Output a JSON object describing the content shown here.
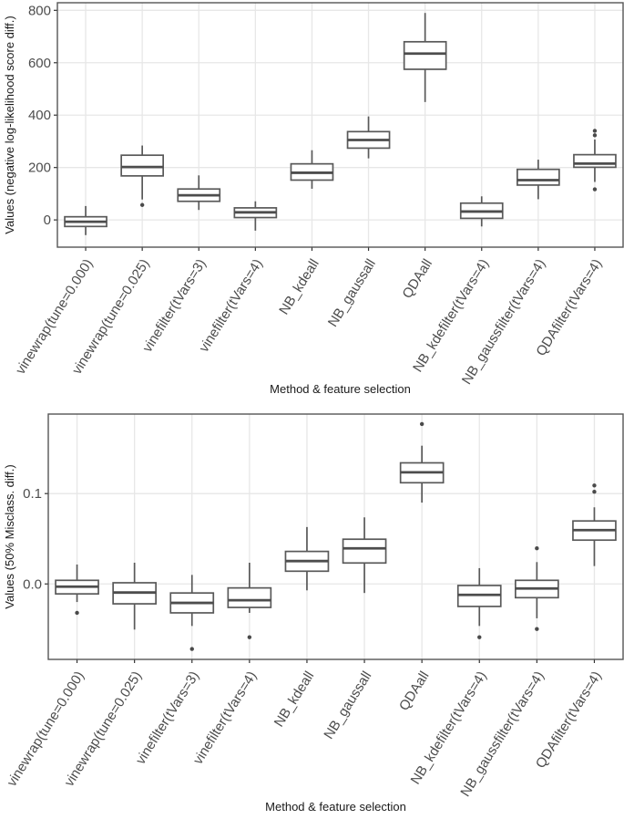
{
  "colors": {
    "box_stroke": "#595959",
    "median_stroke": "#4d4d4d",
    "box_fill": "#ffffff",
    "outlier_fill": "#4a4a4a",
    "grid": "#e7e7e7",
    "panel_border": "#555555",
    "tick_mark": "#333333",
    "tick_label": "#4d4d4d",
    "axis_title": "#1a1a1a",
    "background": "#ffffff"
  },
  "chart_data": [
    {
      "type": "boxplot",
      "xlabel": "Method & feature selection",
      "ylabel": "Values (negative log-likelihood score diff.)",
      "grid": true,
      "legend": "none",
      "ylim": [
        -104,
        829
      ],
      "ytick_values": [
        0,
        200,
        400,
        600,
        800
      ],
      "ytick_labels": [
        "0",
        "200",
        "400",
        "600",
        "800"
      ],
      "categories": [
        "vinewrap(tune=0.000)",
        "vinewrap(tune=0.025)",
        "vinefilter(tVars=3)",
        "vinefilter(tVars=4)",
        "NB_kdeall",
        "NB_gaussall",
        "QDAall",
        "NB_kdefilter(tVars=4)",
        "NB_gaussfilter(tVars=4)",
        "QDAfilter(tVars=4)"
      ],
      "boxes": [
        {
          "low": -58,
          "q1": -25,
          "median": -7,
          "q3": 12,
          "high": 53,
          "outliers": []
        },
        {
          "low": 78,
          "q1": 168,
          "median": 202,
          "q3": 247,
          "high": 284,
          "outliers": [
            57
          ]
        },
        {
          "low": 38,
          "q1": 71,
          "median": 94,
          "q3": 118,
          "high": 170,
          "outliers": []
        },
        {
          "low": -41,
          "q1": 9,
          "median": 29,
          "q3": 46,
          "high": 71,
          "outliers": []
        },
        {
          "low": 119,
          "q1": 152,
          "median": 180,
          "q3": 214,
          "high": 266,
          "outliers": []
        },
        {
          "low": 235,
          "q1": 274,
          "median": 305,
          "q3": 337,
          "high": 395,
          "outliers": []
        },
        {
          "low": 450,
          "q1": 575,
          "median": 635,
          "q3": 680,
          "high": 790,
          "outliers": []
        },
        {
          "low": -25,
          "q1": 6,
          "median": 32,
          "q3": 64,
          "high": 90,
          "outliers": []
        },
        {
          "low": 79,
          "q1": 133,
          "median": 152,
          "q3": 193,
          "high": 230,
          "outliers": []
        },
        {
          "low": 145,
          "q1": 201,
          "median": 215,
          "q3": 249,
          "high": 307,
          "outliers": [
            340,
            323,
            117
          ]
        }
      ]
    },
    {
      "type": "boxplot",
      "xlabel": "Method & feature selection",
      "ylabel": "Values (50% Misclass. diff.)",
      "grid": true,
      "legend": "none",
      "ylim": [
        -0.0835,
        0.188
      ],
      "ytick_values": [
        0,
        0.1
      ],
      "ytick_labels": [
        "0.0",
        "0.1"
      ],
      "categories": [
        "vinewrap(tune=0.000)",
        "vinewrap(tune=0.025)",
        "vinefilter(tVars=3)",
        "vinefilter(tVars=4)",
        "NB_kdeall",
        "NB_gaussall",
        "QDAall",
        "NB_kdefilter(tVars=4)",
        "NB_gaussfilter(tVars=4)",
        "QDAfilter(tVars=4)"
      ],
      "boxes": [
        {
          "low": -0.02,
          "q1": -0.011,
          "median": -0.003,
          "q3": 0.004,
          "high": 0.0215,
          "outliers": [
            -0.032
          ]
        },
        {
          "low": -0.0505,
          "q1": -0.022,
          "median": -0.0095,
          "q3": 0.0013,
          "high": 0.0235,
          "outliers": []
        },
        {
          "low": -0.0465,
          "q1": -0.032,
          "median": -0.021,
          "q3": -0.01,
          "high": 0.01,
          "outliers": [
            -0.072
          ]
        },
        {
          "low": -0.032,
          "q1": -0.026,
          "median": -0.018,
          "q3": -0.0044,
          "high": 0.0235,
          "outliers": [
            -0.059
          ]
        },
        {
          "low": -0.0071,
          "q1": 0.0141,
          "median": 0.0253,
          "q3": 0.036,
          "high": 0.063,
          "outliers": []
        },
        {
          "low": -0.01,
          "q1": 0.0232,
          "median": 0.0394,
          "q3": 0.0495,
          "high": 0.0737,
          "outliers": []
        },
        {
          "low": 0.09,
          "q1": 0.112,
          "median": 0.1235,
          "q3": 0.134,
          "high": 0.153,
          "outliers": [
            0.177
          ]
        },
        {
          "low": -0.0465,
          "q1": -0.0249,
          "median": -0.0121,
          "q3": -0.0017,
          "high": 0.0175,
          "outliers": [
            -0.059
          ]
        },
        {
          "low": -0.038,
          "q1": -0.0152,
          "median": -0.005,
          "q3": 0.004,
          "high": 0.0242,
          "outliers": [
            0.0394,
            -0.0499
          ]
        },
        {
          "low": 0.0198,
          "q1": 0.0485,
          "median": 0.0596,
          "q3": 0.0697,
          "high": 0.0848,
          "outliers": [
            0.109,
            0.102
          ]
        }
      ]
    }
  ]
}
